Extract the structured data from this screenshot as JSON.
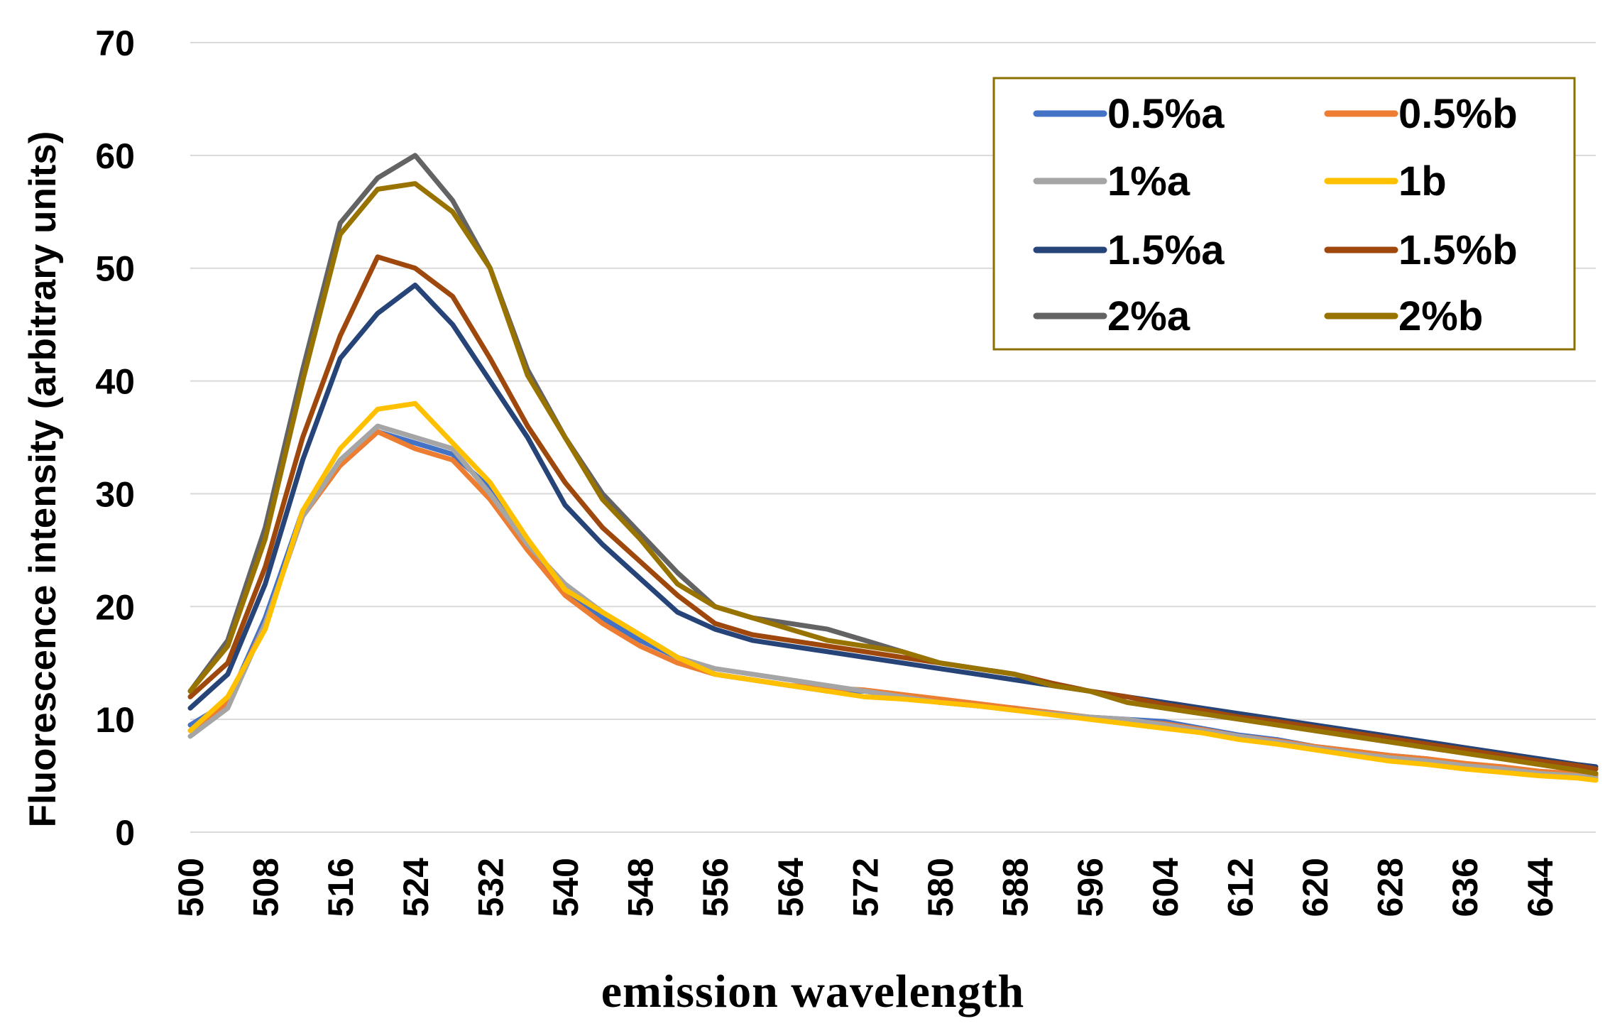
{
  "chart_data": {
    "type": "line",
    "title": "",
    "xlabel": "emission wavelength",
    "ylabel": "Fluorescence intensity (arbitrary units)",
    "xlim": [
      500,
      650
    ],
    "ylim": [
      0,
      70
    ],
    "yticks": [
      0,
      10,
      20,
      30,
      40,
      50,
      60,
      70
    ],
    "xticks": [
      "500",
      "508",
      "516",
      "524",
      "532",
      "540",
      "548",
      "556",
      "564",
      "572",
      "580",
      "588",
      "596",
      "604",
      "612",
      "620",
      "628",
      "636",
      "644"
    ],
    "grid": "horizontal",
    "legend_position": "top-right",
    "x": [
      500,
      504,
      508,
      512,
      516,
      520,
      524,
      528,
      532,
      536,
      540,
      544,
      548,
      552,
      556,
      560,
      564,
      568,
      572,
      576,
      580,
      584,
      588,
      592,
      596,
      600,
      604,
      608,
      612,
      616,
      620,
      624,
      628,
      632,
      636,
      640,
      644,
      648,
      650
    ],
    "series": [
      {
        "name": "0.5%a",
        "color": "#4472C4",
        "values": [
          9.5,
          11.5,
          19,
          28.5,
          32.5,
          35.5,
          34.5,
          33.5,
          30.5,
          25.5,
          21.5,
          19.0,
          17.0,
          15.5,
          14.0,
          13.5,
          13.0,
          12.5,
          12.5,
          12.0,
          11.5,
          11.2,
          11.0,
          10.5,
          10.2,
          10.0,
          9.8,
          9.2,
          8.6,
          8.2,
          7.6,
          7.2,
          6.8,
          6.5,
          6.0,
          5.7,
          5.3,
          5.1,
          5.0
        ]
      },
      {
        "name": "0.5%b",
        "color": "#ED7D31",
        "values": [
          9.0,
          11.5,
          18.5,
          28.0,
          32.5,
          35.5,
          34.0,
          33.0,
          29.5,
          25.0,
          21.0,
          18.5,
          16.5,
          15.0,
          14.0,
          13.5,
          13.0,
          12.8,
          12.6,
          12.2,
          11.8,
          11.4,
          11.0,
          10.6,
          10.2,
          9.9,
          9.6,
          9.1,
          8.5,
          8.1,
          7.6,
          7.2,
          6.8,
          6.5,
          6.1,
          5.8,
          5.4,
          5.2,
          5.0
        ]
      },
      {
        "name": "1%a",
        "color": "#A5A5A5",
        "values": [
          8.5,
          11.0,
          18.5,
          28.0,
          33.0,
          36.0,
          35.0,
          34.0,
          30.0,
          25.5,
          22.0,
          19.5,
          17.5,
          15.5,
          14.5,
          14.0,
          13.5,
          13.0,
          12.5,
          12.0,
          11.5,
          11.2,
          10.8,
          10.5,
          10.2,
          10.0,
          9.5,
          9.0,
          8.5,
          8.0,
          7.5,
          7.0,
          6.6,
          6.3,
          5.9,
          5.6,
          5.2,
          5.0,
          4.8
        ]
      },
      {
        "name": "1b",
        "color": "#FFC000",
        "values": [
          9.0,
          12.0,
          18.0,
          28.5,
          34.0,
          37.5,
          38.0,
          34.5,
          31.0,
          26.0,
          21.5,
          19.5,
          17.5,
          15.5,
          14.0,
          13.5,
          13.0,
          12.5,
          12.0,
          11.8,
          11.5,
          11.2,
          10.8,
          10.4,
          10.0,
          9.6,
          9.2,
          8.8,
          8.2,
          7.8,
          7.3,
          6.8,
          6.3,
          6.0,
          5.6,
          5.3,
          5.0,
          4.8,
          4.6
        ]
      },
      {
        "name": "1.5%a",
        "color": "#264478",
        "values": [
          11.0,
          14.0,
          22.0,
          33.0,
          42.0,
          46.0,
          48.5,
          45.0,
          40.0,
          35.0,
          29.0,
          25.5,
          22.5,
          19.5,
          18.0,
          17.0,
          16.5,
          16.0,
          15.5,
          15.0,
          14.5,
          14.0,
          13.5,
          13.0,
          12.5,
          12.0,
          11.5,
          11.0,
          10.5,
          10.0,
          9.5,
          9.0,
          8.5,
          8.0,
          7.5,
          7.0,
          6.5,
          6.0,
          5.8
        ]
      },
      {
        "name": "1.5%b",
        "color": "#9E480E",
        "values": [
          12.0,
          15.0,
          23.5,
          35.0,
          44.0,
          51.0,
          50.0,
          47.5,
          42.0,
          36.0,
          31.0,
          27.0,
          24.0,
          21.0,
          18.5,
          17.5,
          17.0,
          16.5,
          16.0,
          15.5,
          15.0,
          14.5,
          14.0,
          13.2,
          12.5,
          12.0,
          11.3,
          10.8,
          10.2,
          9.8,
          9.3,
          8.8,
          8.3,
          7.8,
          7.3,
          6.8,
          6.3,
          5.9,
          5.6
        ]
      },
      {
        "name": "2%a",
        "color": "#636363",
        "values": [
          12.5,
          17.0,
          27.0,
          41.0,
          54.0,
          58.0,
          60.0,
          56.0,
          50.0,
          41.0,
          35.0,
          30.0,
          26.5,
          23.0,
          20.0,
          19.0,
          18.5,
          18.0,
          17.0,
          16.0,
          15.0,
          14.5,
          14.0,
          13.0,
          12.5,
          11.5,
          11.0,
          10.5,
          10.0,
          9.5,
          9.0,
          8.5,
          8.0,
          7.5,
          7.0,
          6.5,
          6.0,
          5.5,
          5.2
        ]
      },
      {
        "name": "2%b",
        "color": "#997300",
        "values": [
          12.5,
          16.5,
          26.0,
          40.0,
          53.0,
          57.0,
          57.5,
          55.0,
          50.0,
          40.5,
          35.0,
          29.5,
          26.0,
          22.0,
          20.0,
          19.0,
          18.0,
          17.0,
          16.5,
          16.0,
          15.0,
          14.5,
          14.0,
          13.0,
          12.5,
          11.5,
          11.0,
          10.5,
          10.0,
          9.5,
          9.0,
          8.5,
          8.0,
          7.5,
          7.0,
          6.5,
          6.0,
          5.5,
          5.2
        ]
      }
    ]
  }
}
